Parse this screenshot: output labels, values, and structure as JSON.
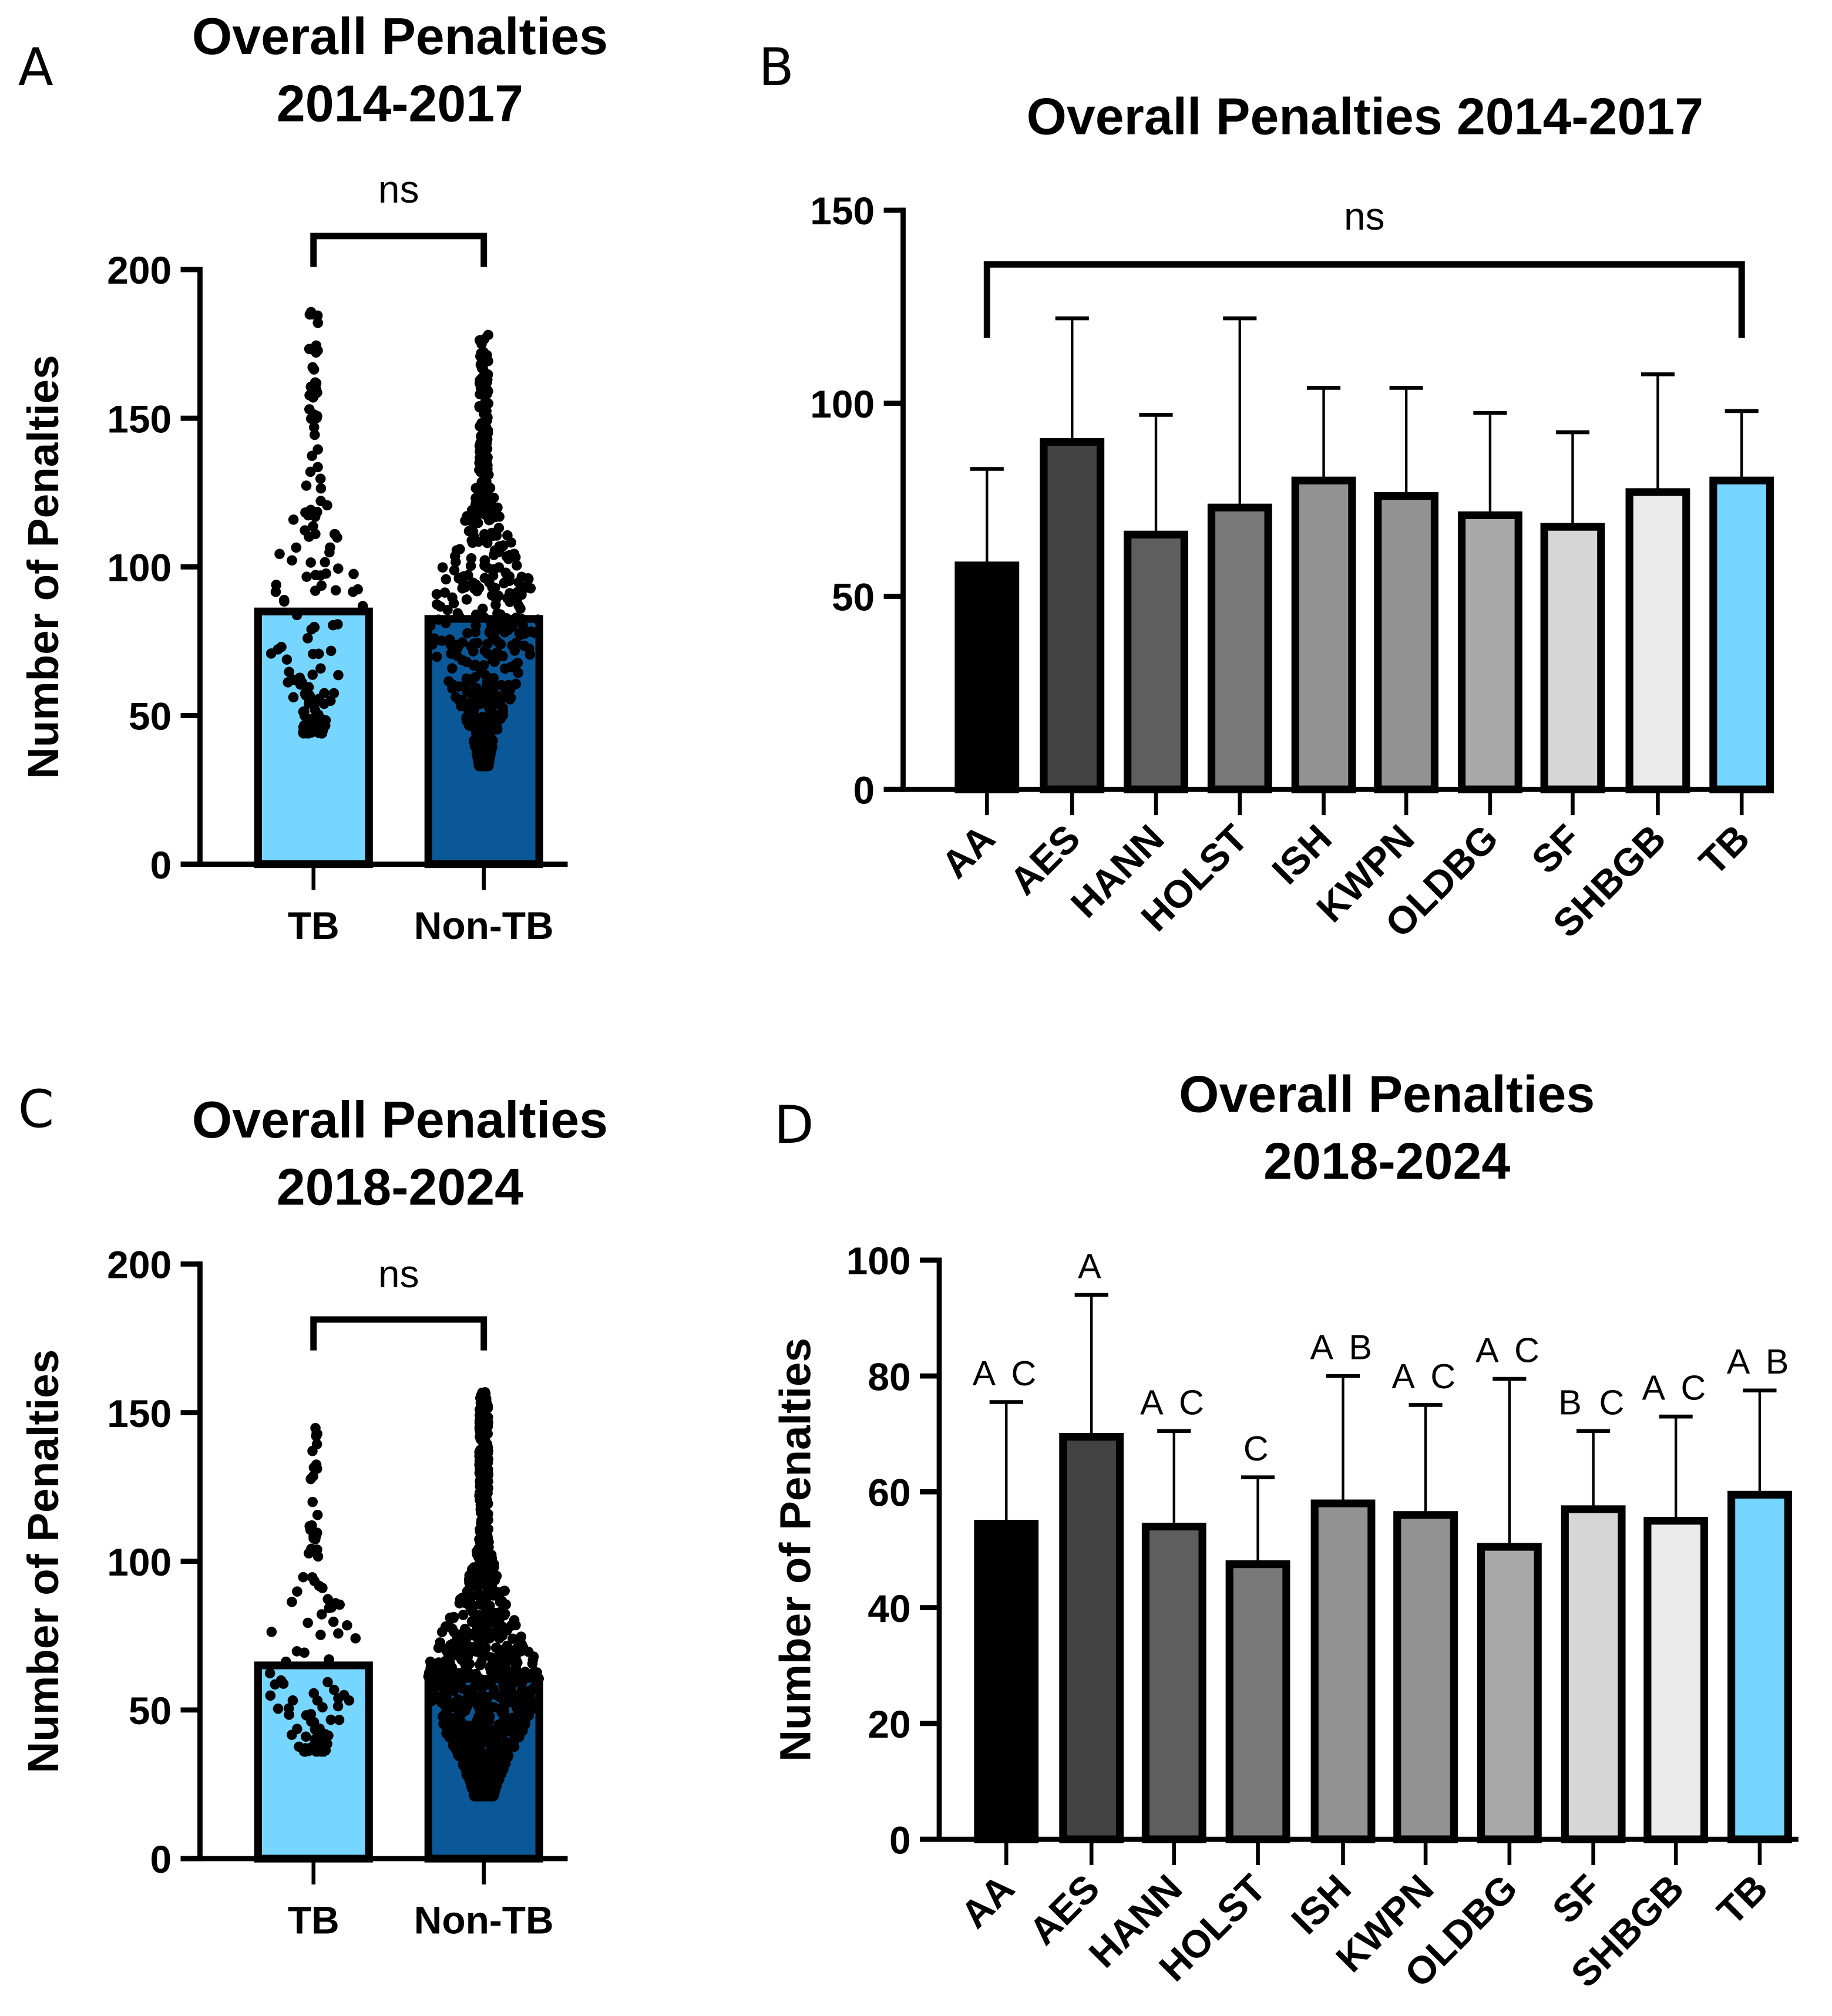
{
  "chart_data": [
    {
      "panel": "A",
      "type": "bar",
      "title": [
        "Overall Penalties",
        "2014-2017"
      ],
      "ylabel": "Number of Penalties",
      "ylim": [
        0,
        200
      ],
      "yticks": [
        0,
        50,
        100,
        150,
        200
      ],
      "categories": [
        "TB",
        "Non-TB"
      ],
      "values": [
        85,
        82.5
      ],
      "colors": [
        "#76d6ff",
        "#0a5897"
      ],
      "points": [
        {
          "min": 44,
          "max": 187,
          "n": 150
        },
        {
          "min": 33,
          "max": 178,
          "n": 700
        }
      ],
      "significance": "ns"
    },
    {
      "panel": "B",
      "type": "bar",
      "title": [
        "Overall Penalties 2014-2017"
      ],
      "ylabel": "",
      "ylim": [
        0,
        150
      ],
      "yticks": [
        0,
        50,
        100,
        150
      ],
      "categories": [
        "AA",
        "AES",
        "HANN",
        "HOLST",
        "ISH",
        "KWPN",
        "OLDBG",
        "SF",
        "SHBGB",
        "TB"
      ],
      "values": [
        58,
        90,
        66,
        73,
        80,
        76,
        71,
        68,
        77,
        80
      ],
      "error_upper": [
        83,
        122,
        97,
        122,
        104,
        104,
        97.5,
        92.5,
        107.5,
        98
      ],
      "colors": [
        "#000000",
        "#424242",
        "#5e5e5e",
        "#797979",
        "#929292",
        "#929292",
        "#a9a9a9",
        "#d6d6d6",
        "#ebebeb",
        "#76d6ff"
      ],
      "significance": "ns"
    },
    {
      "panel": "C",
      "type": "bar",
      "title": [
        "Overall Penalties",
        "2018-2024"
      ],
      "ylabel": "Number of Penalties",
      "ylim": [
        0,
        200
      ],
      "yticks": [
        0,
        50,
        100,
        150,
        200
      ],
      "categories": [
        "TB",
        "Non-TB"
      ],
      "values": [
        65,
        60.5
      ],
      "colors": [
        "#76d6ff",
        "#0a5897"
      ],
      "points": [
        {
          "min": 36,
          "max": 146,
          "n": 110
        },
        {
          "min": 21,
          "max": 157,
          "n": 1400
        }
      ],
      "significance": "ns"
    },
    {
      "panel": "D",
      "type": "bar",
      "title": [
        "Overall Penalties",
        "2018-2024"
      ],
      "ylabel": "Number of Penalties",
      "ylim": [
        0,
        100
      ],
      "yticks": [
        0,
        20,
        40,
        60,
        80,
        100
      ],
      "categories": [
        "AA",
        "AES",
        "HANN",
        "HOLST",
        "ISH",
        "KWPN",
        "OLDBG",
        "SF",
        "SHBGB",
        "TB"
      ],
      "values": [
        54.5,
        69.5,
        54,
        47.5,
        58,
        56,
        50.5,
        57,
        55,
        59.5
      ],
      "error_upper": [
        75.5,
        94,
        70.5,
        62.5,
        80,
        75,
        79.5,
        70.5,
        73,
        77.5
      ],
      "letters": [
        "A C",
        "A",
        "A C",
        "C",
        "A B",
        "A C",
        "A C",
        "B C",
        "A C",
        "A B"
      ],
      "colors": [
        "#000000",
        "#424242",
        "#5e5e5e",
        "#797979",
        "#929292",
        "#929292",
        "#a9a9a9",
        "#d6d6d6",
        "#ebebeb",
        "#76d6ff"
      ]
    }
  ]
}
